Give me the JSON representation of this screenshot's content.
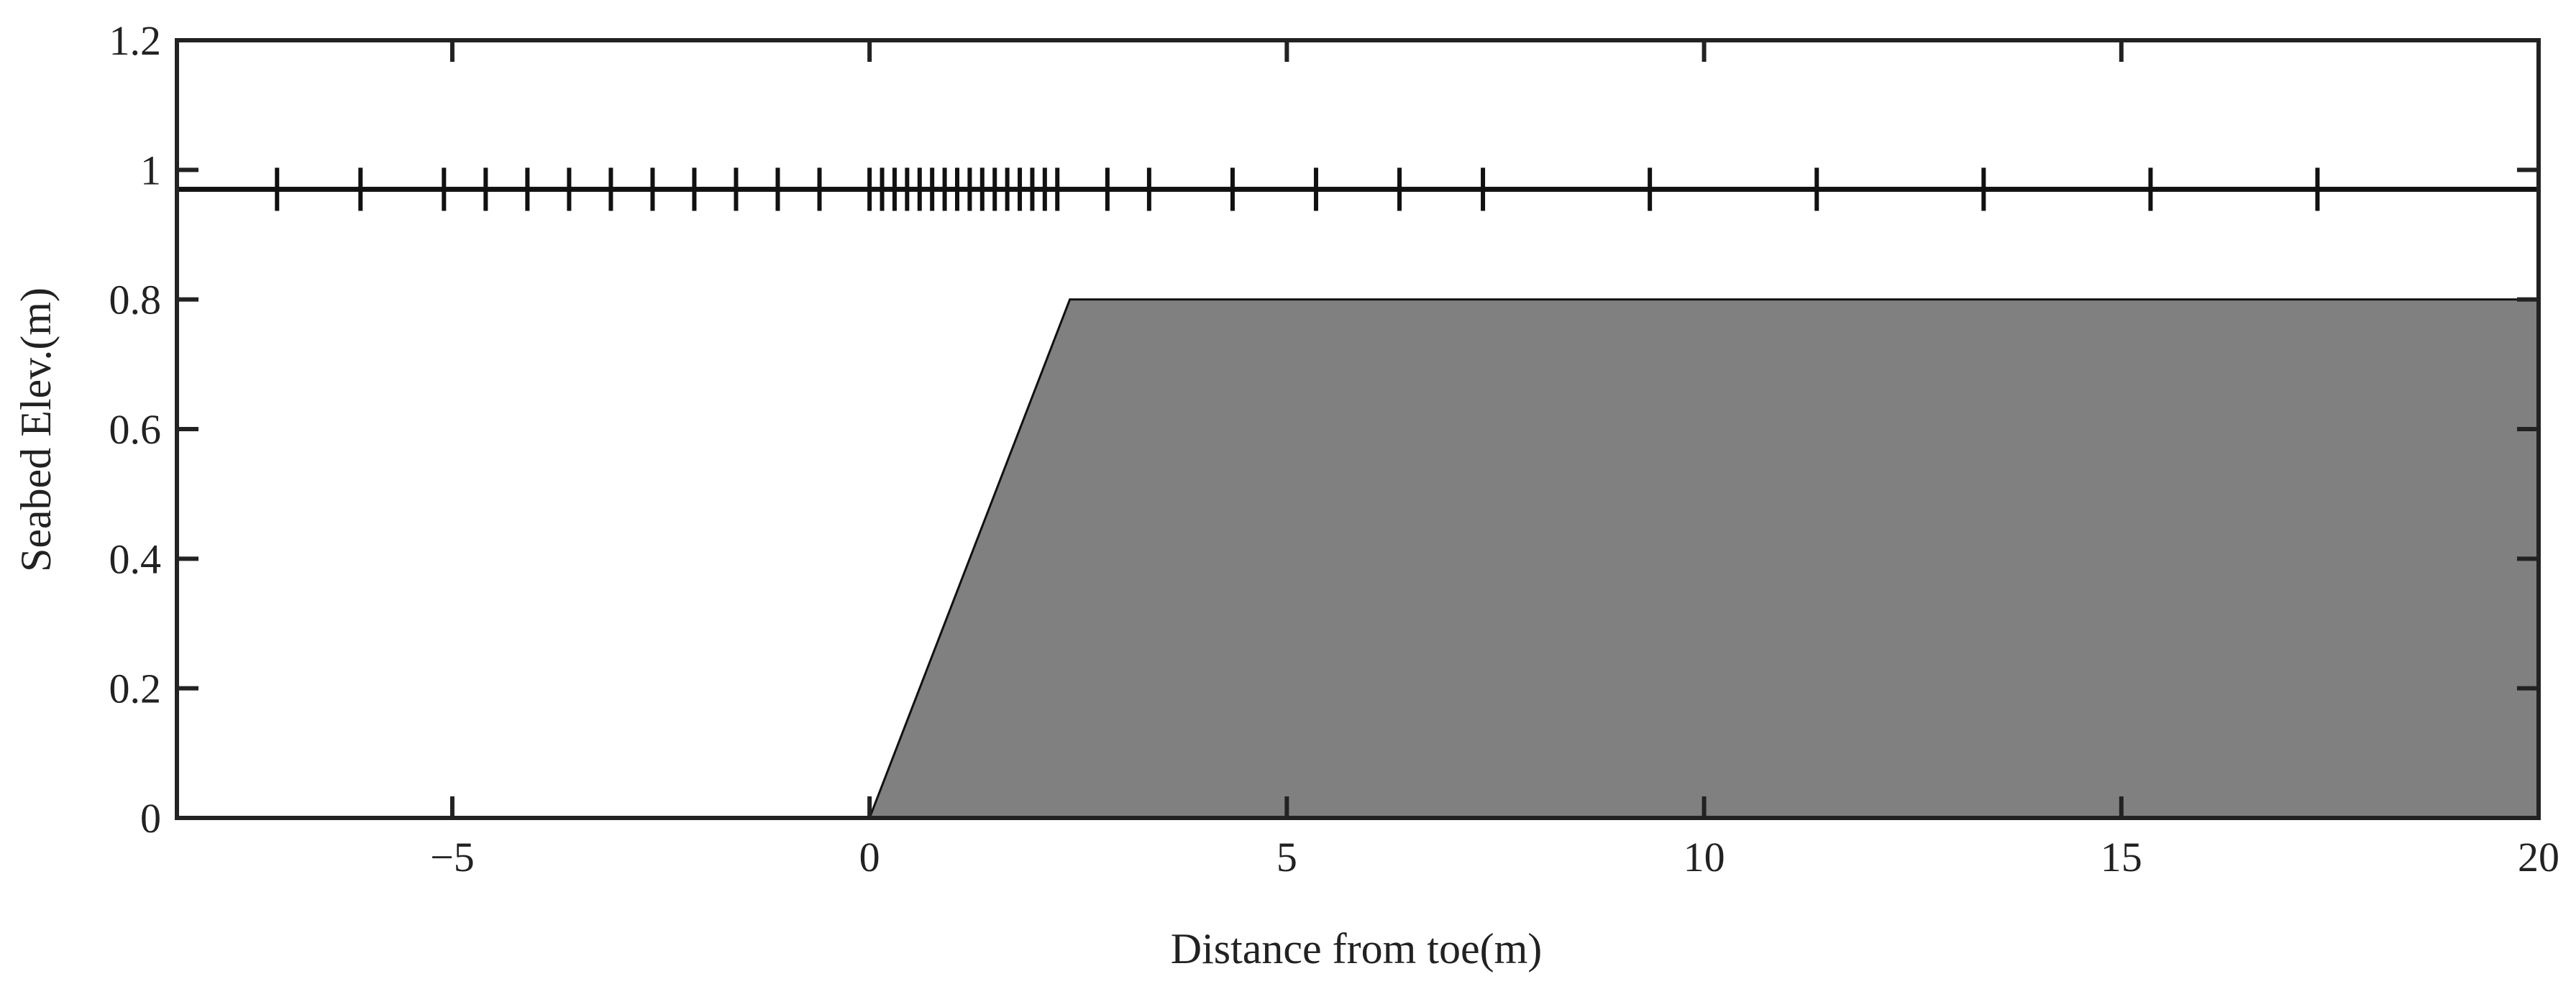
{
  "chart_data": {
    "type": "area",
    "xlabel": "Distance from toe(m)",
    "ylabel": "Seabed Elev.(m)",
    "xlim": [
      -8.3,
      20
    ],
    "ylim": [
      0,
      1.2
    ],
    "xticks": [
      -5,
      0,
      5,
      10,
      15,
      20
    ],
    "xtick_labels": [
      "−5",
      "0",
      "5",
      "10",
      "15",
      "20"
    ],
    "yticks": [
      0,
      0.2,
      0.4,
      0.6,
      0.8,
      1,
      1.2
    ],
    "ytick_labels": [
      "0",
      "0.2",
      "0.4",
      "0.6",
      "0.8",
      "1",
      "1.2"
    ],
    "grid": false,
    "box": true,
    "series": [
      {
        "type": "area",
        "fill_color": "#808080",
        "edge_color": "#111111",
        "x": [
          0,
          2.4,
          20
        ],
        "y": [
          0,
          0.8,
          0.8
        ]
      },
      {
        "type": "line",
        "color": "#111111",
        "x": [
          -8.3,
          0
        ],
        "y": [
          0,
          0
        ]
      }
    ],
    "gauge_array": {
      "type": "markers",
      "marker": "vertical-tick",
      "color": "#111111",
      "y": 0.97,
      "x": [
        -7.1,
        -6.1,
        -5.1,
        -4.6,
        -4.1,
        -3.6,
        -3.1,
        -2.6,
        -2.1,
        -1.6,
        -1.1,
        -0.6,
        0,
        0.15,
        0.3,
        0.45,
        0.6,
        0.75,
        0.9,
        1.05,
        1.2,
        1.35,
        1.5,
        1.65,
        1.8,
        1.95,
        2.1,
        2.25,
        2.85,
        3.35,
        4.35,
        5.35,
        6.35,
        7.35,
        9.35,
        11.35,
        13.35,
        15.35,
        17.35
      ]
    }
  }
}
